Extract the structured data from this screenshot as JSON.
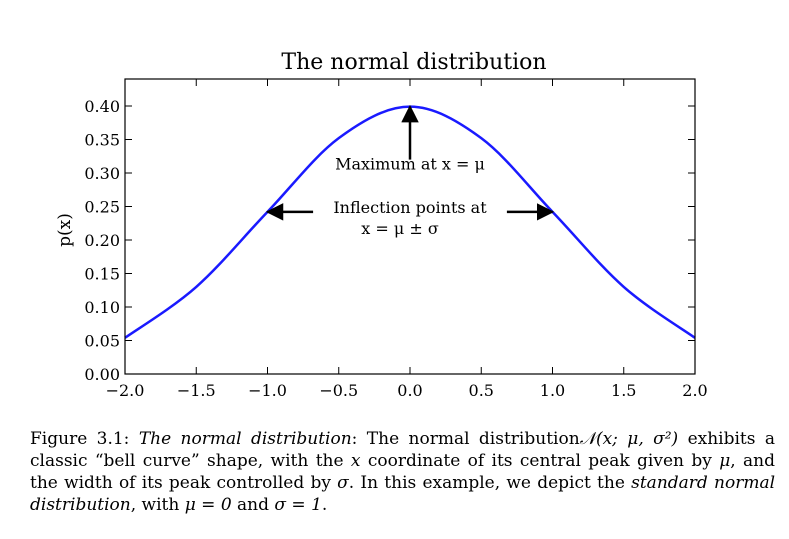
{
  "chart_data": {
    "type": "line",
    "title": "The normal distribution",
    "xlabel": "",
    "ylabel": "p(x)",
    "xlim": [
      -2.0,
      2.0
    ],
    "ylim": [
      0.0,
      0.4
    ],
    "grid": false,
    "xticks": [
      -2.0,
      -1.5,
      -1.0,
      -0.5,
      0.0,
      0.5,
      1.0,
      1.5,
      2.0
    ],
    "xtick_labels": [
      "−2.0",
      "−1.5",
      "−1.0",
      "−0.5",
      "0.0",
      "0.5",
      "1.0",
      "1.5",
      "2.0"
    ],
    "yticks": [
      0.0,
      0.05,
      0.1,
      0.15,
      0.2,
      0.25,
      0.3,
      0.35,
      0.4
    ],
    "ytick_labels": [
      "0.00",
      "0.05",
      "0.10",
      "0.15",
      "0.20",
      "0.25",
      "0.30",
      "0.35",
      "0.40"
    ],
    "series": [
      {
        "color": "#1a1aff",
        "x": [
          -2.0,
          -1.5,
          -1.0,
          -0.5,
          0.0,
          0.5,
          1.0,
          1.5,
          2.0
        ],
        "y": [
          0.054,
          0.13,
          0.242,
          0.352,
          0.399,
          0.352,
          0.242,
          0.13,
          0.054
        ]
      }
    ],
    "annotations": [
      {
        "lines": [
          "Maximum at x = μ"
        ],
        "text_at": [
          0.0,
          0.305
        ],
        "arrow_from": [
          0.0,
          0.32
        ],
        "arrow_to": [
          0.0,
          0.399
        ]
      },
      {
        "lines": [
          "Inflection points at",
          "x = μ ± σ"
        ],
        "text_at": [
          0.0,
          0.24
        ],
        "arrow_from": [
          -0.68,
          0.242
        ],
        "arrow_to": [
          -1.0,
          0.242
        ],
        "arrow2_from": [
          0.68,
          0.242
        ],
        "arrow2_to": [
          1.0,
          0.242
        ]
      }
    ]
  },
  "caption": {
    "label": "Figure 3.1:",
    "title_italic": "The normal distribution",
    "text_1": ": The normal distribution",
    "math_1": "𝒩(x; μ, σ²)",
    "text_2": " exhibits a classic “bell curve” shape, with the ",
    "math_2": "x",
    "text_3": " coordinate of its central peak given by ",
    "math_3": "μ",
    "text_4": ", and the width of its peak controlled by ",
    "math_4": "σ",
    "text_5": ". In this example, we depict the ",
    "italic_2": "standard normal distribution",
    "text_6": ", with ",
    "math_5": "μ = 0",
    "text_7": " and ",
    "math_6": "σ = 1",
    "text_8": "."
  }
}
